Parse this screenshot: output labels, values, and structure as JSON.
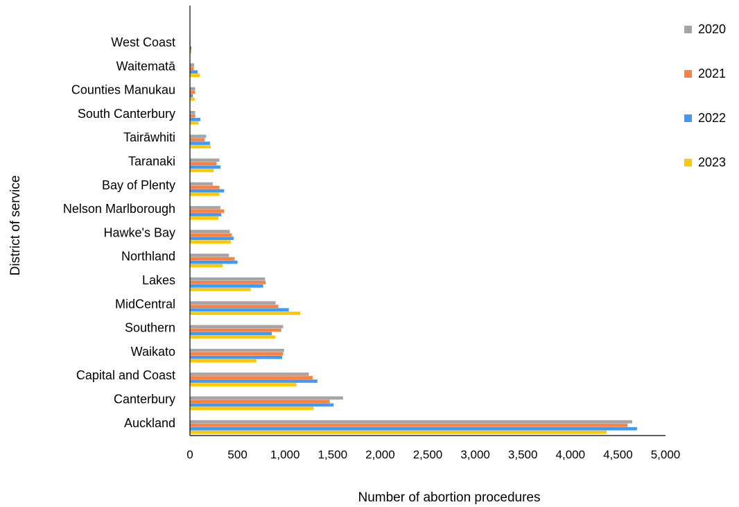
{
  "chart_data": {
    "type": "bar",
    "orientation": "horizontal",
    "xlabel": "Number of abortion procedures",
    "ylabel": "District of service",
    "xlim": [
      0,
      5000
    ],
    "xticks": [
      "0",
      "500",
      "1,000",
      "1,500",
      "2,000",
      "2,500",
      "3,000",
      "3,500",
      "4,000",
      "4,500",
      "5,000"
    ],
    "grid": false,
    "legend_position": "right",
    "categories": [
      "West Coast",
      "Waitematā",
      "Counties Manukau",
      "South Canterbury",
      "Tairāwhiti",
      "Taranaki",
      "Bay of Plenty",
      "Nelson Marlborough",
      "Hawke's Bay",
      "Northland",
      "Lakes",
      "MidCentral",
      "Southern",
      "Waikato",
      "Capital and Coast",
      "Canterbury",
      "Auckland"
    ],
    "series": [
      {
        "name": "2020",
        "color": "#A5A5A5",
        "values": [
          5,
          45,
          55,
          55,
          170,
          310,
          240,
          320,
          420,
          410,
          790,
          900,
          980,
          990,
          1250,
          1610,
          4650
        ]
      },
      {
        "name": "2021",
        "color": "#FF7F3F",
        "values": [
          5,
          40,
          55,
          55,
          155,
          280,
          310,
          360,
          440,
          470,
          795,
          930,
          960,
          980,
          1290,
          1470,
          4600
        ]
      },
      {
        "name": "2022",
        "color": "#3D9BF5",
        "values": [
          15,
          80,
          30,
          110,
          210,
          320,
          360,
          330,
          460,
          500,
          770,
          1040,
          860,
          970,
          1340,
          1510,
          4700
        ]
      },
      {
        "name": "2023",
        "color": "#FFC700",
        "values": [
          15,
          105,
          50,
          90,
          220,
          250,
          310,
          300,
          430,
          345,
          640,
          1160,
          895,
          700,
          1120,
          1300,
          4380
        ]
      }
    ]
  }
}
